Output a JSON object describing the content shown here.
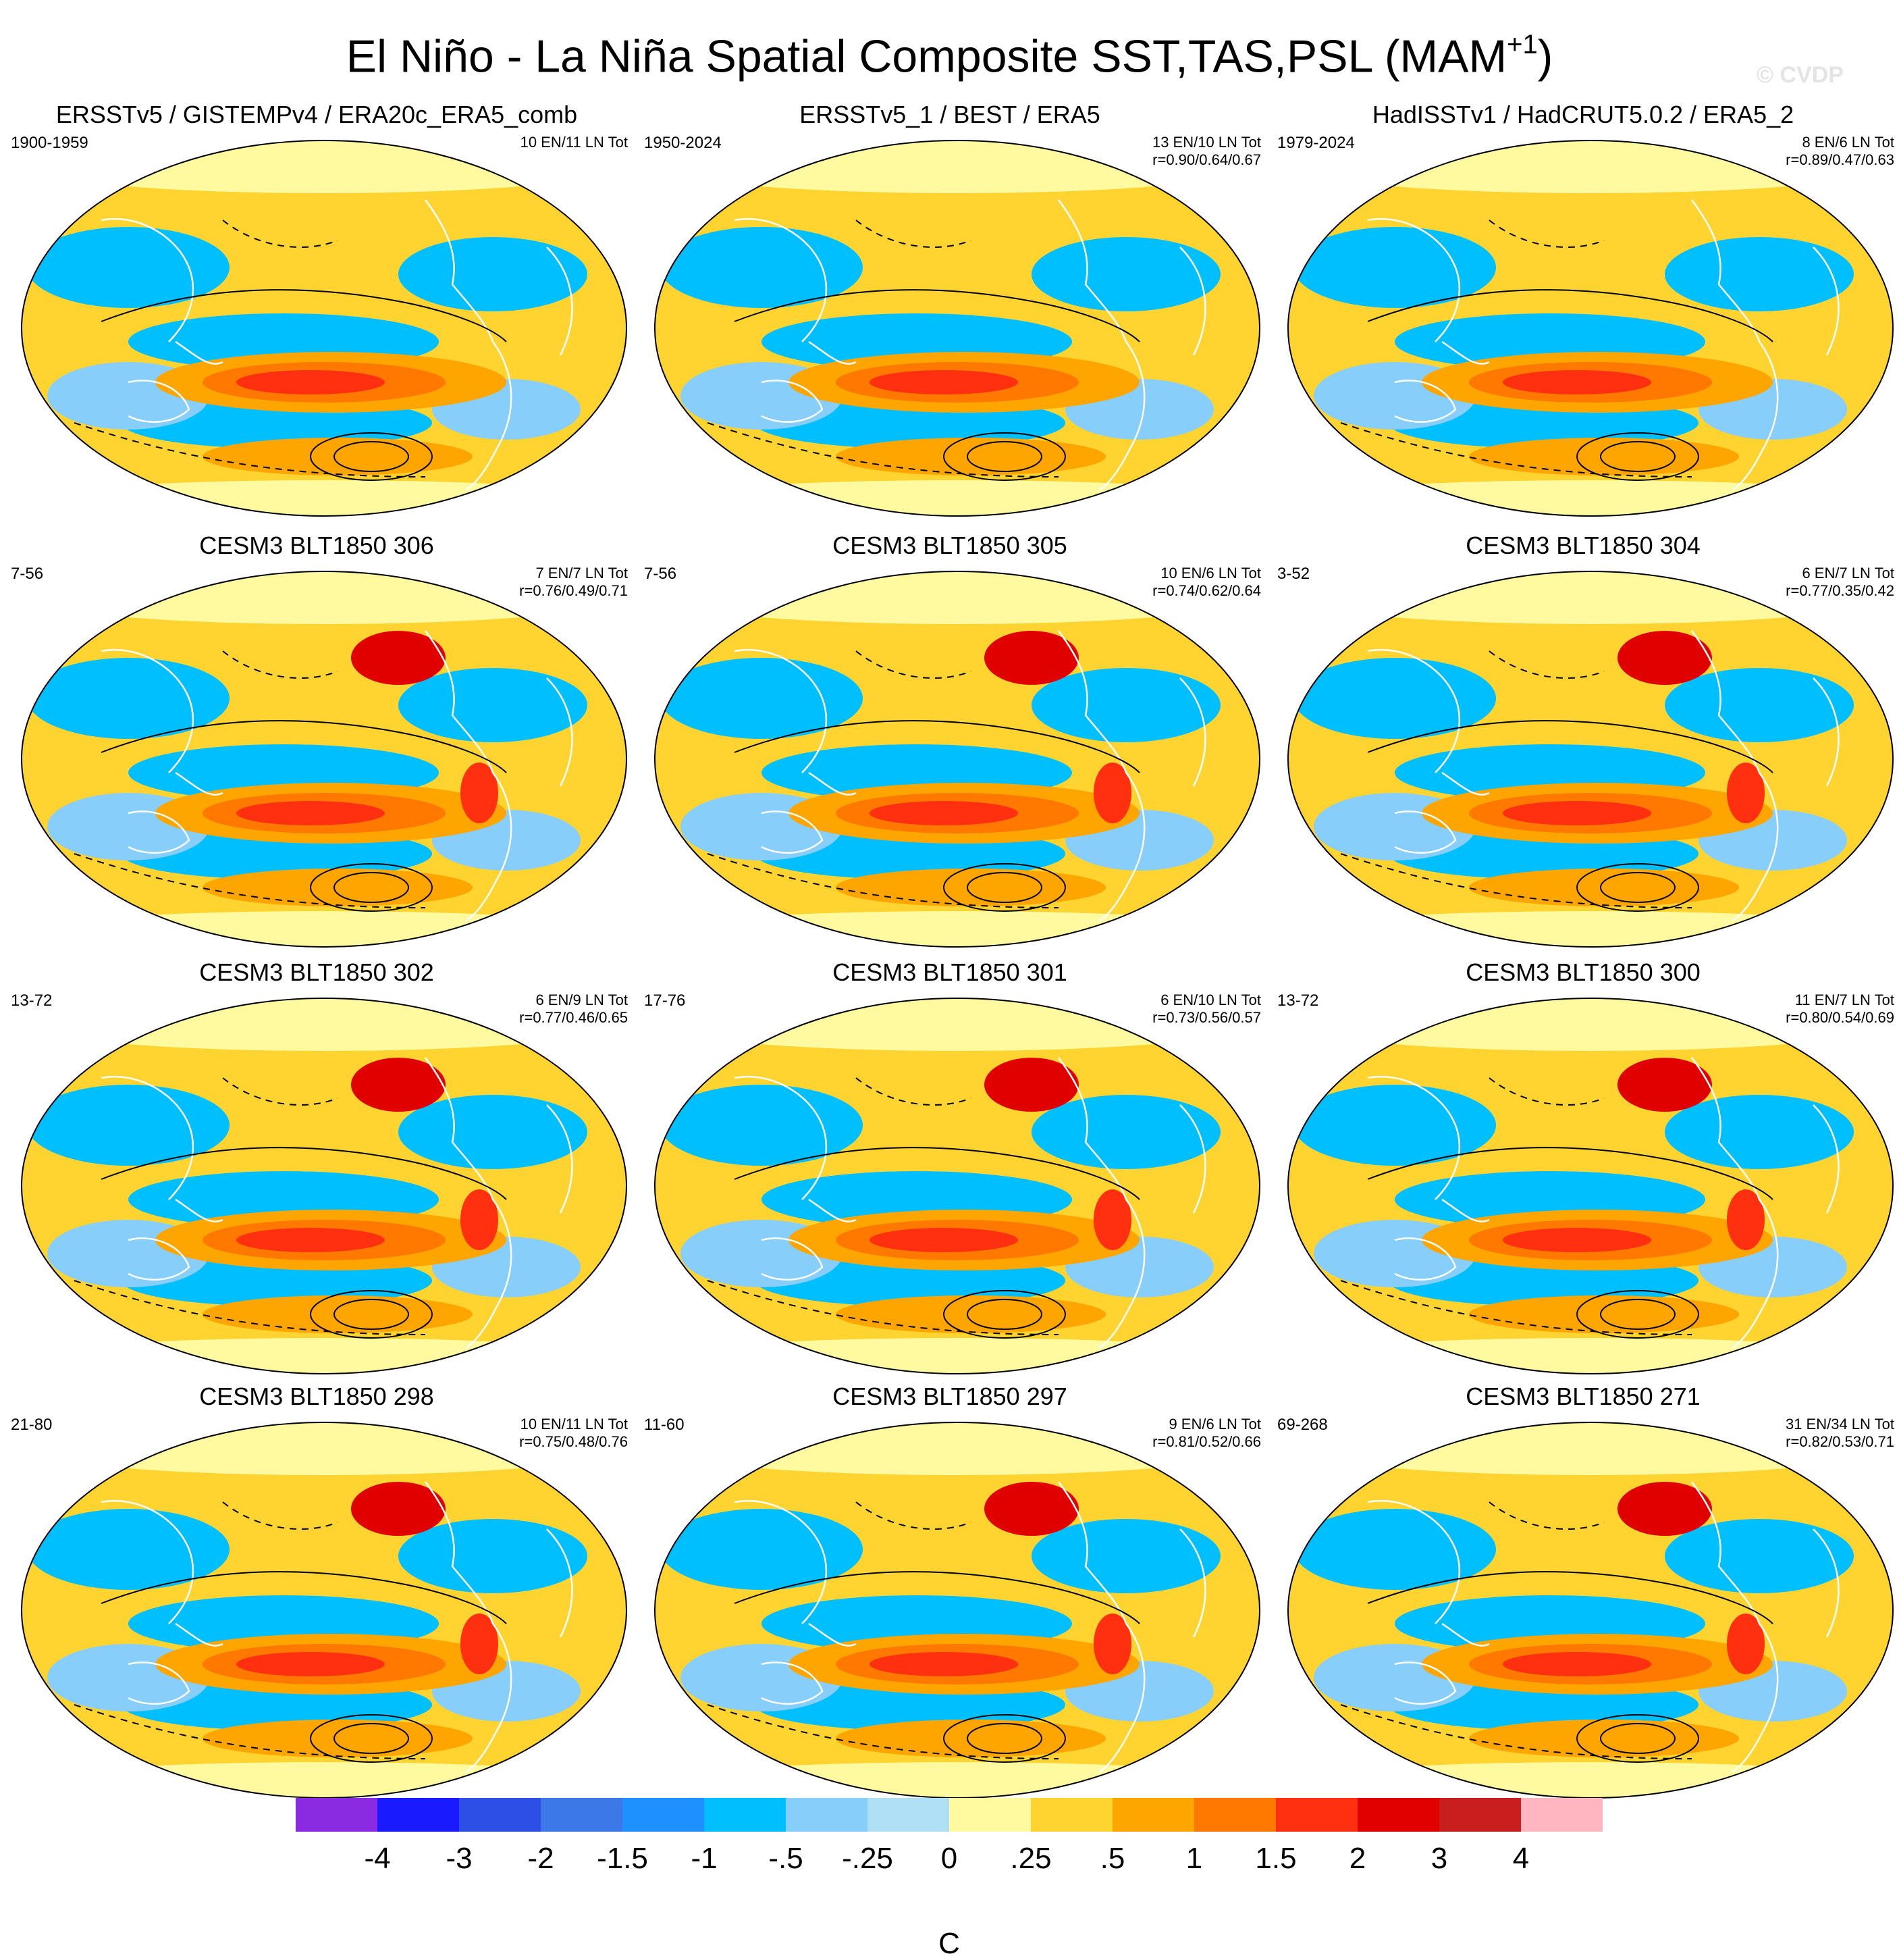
{
  "figure": {
    "title_main": "El Niño - La Niña Spatial Composite SST,TAS,PSL (MAM",
    "title_sup": "+1",
    "title_end": ")",
    "watermark": "© CVDP"
  },
  "panels": [
    {
      "title": "ERSSTv5 / GISTEMPv4 / ERA20c_ERA5_comb",
      "years": "1900-1959",
      "counts": "10 EN/11 LN Tot",
      "corr": ""
    },
    {
      "title": "ERSSTv5_1 / BEST / ERA5",
      "years": "1950-2024",
      "counts": "13 EN/10 LN Tot",
      "corr": "r=0.90/0.64/0.67"
    },
    {
      "title": "HadISSTv1 / HadCRUT5.0.2 / ERA5_2",
      "years": "1979-2024",
      "counts": "8 EN/6 LN Tot",
      "corr": "r=0.89/0.47/0.63"
    },
    {
      "title": "CESM3 BLT1850 306",
      "years": "7-56",
      "counts": "7 EN/7 LN Tot",
      "corr": "r=0.76/0.49/0.71"
    },
    {
      "title": "CESM3 BLT1850 305",
      "years": "7-56",
      "counts": "10 EN/6 LN Tot",
      "corr": "r=0.74/0.62/0.64"
    },
    {
      "title": "CESM3 BLT1850 304",
      "years": "3-52",
      "counts": "6 EN/7 LN Tot",
      "corr": "r=0.77/0.35/0.42"
    },
    {
      "title": "CESM3 BLT1850 302",
      "years": "13-72",
      "counts": "6 EN/9 LN Tot",
      "corr": "r=0.77/0.46/0.65"
    },
    {
      "title": "CESM3 BLT1850 301",
      "years": "17-76",
      "counts": "6 EN/10 LN Tot",
      "corr": "r=0.73/0.56/0.57"
    },
    {
      "title": "CESM3 BLT1850 300",
      "years": "13-72",
      "counts": "11 EN/7 LN Tot",
      "corr": "r=0.80/0.54/0.69"
    },
    {
      "title": "CESM3 BLT1850 298",
      "years": "21-80",
      "counts": "10 EN/11 LN Tot",
      "corr": "r=0.75/0.48/0.76"
    },
    {
      "title": "CESM3 BLT1850 297",
      "years": "11-60",
      "counts": "9 EN/6 LN Tot",
      "corr": "r=0.81/0.52/0.66"
    },
    {
      "title": "CESM3 BLT1850 271",
      "years": "69-268",
      "counts": "31 EN/34 LN Tot",
      "corr": "r=0.82/0.53/0.71"
    }
  ],
  "colorbar": {
    "unit": "C",
    "ticks": [
      "-4",
      "-3",
      "-2",
      "-1.5",
      "-1",
      "-.5",
      "-.25",
      "0",
      ".25",
      ".5",
      "1",
      "1.5",
      "2",
      "3",
      "4"
    ],
    "colors": [
      "#8a2be2",
      "#1a1aff",
      "#2e4fe6",
      "#3d78e8",
      "#1e90ff",
      "#00bfff",
      "#87cefa",
      "#b0e0f5",
      "#fffaa0",
      "#ffd431",
      "#ffa500",
      "#ff7800",
      "#ff3010",
      "#e00000",
      "#c81e1e",
      "#ffb6c1"
    ]
  },
  "palette": {
    "land_outline": "#ffffff",
    "psl_contour": "#000000",
    "map_border": "#000000"
  }
}
